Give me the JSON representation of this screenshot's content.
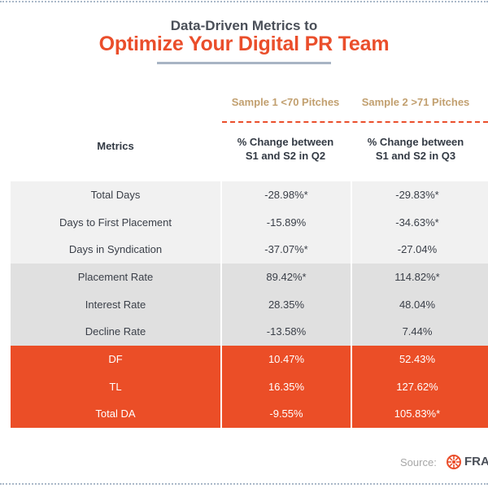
{
  "header": {
    "title_line1": "Data-Driven Metrics to",
    "title_line2": "Optimize Your Digital PR Team"
  },
  "columns": {
    "sample1_header": "Sample 1 <70 Pitches",
    "sample2_header": "Sample 2 >71 Pitches",
    "metrics_label": "Metrics",
    "pct_label_s1_line1": "% Change between",
    "pct_label_s1_line2": "S1 and S2 in Q2",
    "pct_label_s2_line1": "% Change between",
    "pct_label_s2_line2": "S1 and S2 in Q3"
  },
  "groups": [
    {
      "rows": [
        {
          "metric": "Total Days",
          "s1": "-28.98%*",
          "s2": "-29.83%*"
        },
        {
          "metric": "Days to First Placement",
          "s1": "-15.89%",
          "s2": "-34.63%*"
        },
        {
          "metric": "Days in Syndication",
          "s1": "-37.07%*",
          "s2": "-27.04%"
        }
      ]
    },
    {
      "rows": [
        {
          "metric": "Placement Rate",
          "s1": "89.42%*",
          "s2": "114.82%*"
        },
        {
          "metric": "Interest Rate",
          "s1": "28.35%",
          "s2": "48.04%"
        },
        {
          "metric": "Decline Rate",
          "s1": "-13.58%",
          "s2": "7.44%"
        }
      ]
    },
    {
      "rows": [
        {
          "metric": "DF",
          "s1": "10.47%",
          "s2": "52.43%"
        },
        {
          "metric": "TL",
          "s1": "16.35%",
          "s2": "127.62%"
        },
        {
          "metric": "Total DA",
          "s1": "-9.55%",
          "s2": "105.83%*"
        }
      ]
    }
  ],
  "footer": {
    "source_label": "Source:",
    "brand_text": "FRAC",
    "brand_icon": "fractl-logo-icon"
  },
  "colors": {
    "accent": "#ea4e2b",
    "sample_header": "#c2a070",
    "group1_bg": "#f1f1f1",
    "group2_bg": "#e0e0e0",
    "group3_bg": "#eb4e27"
  }
}
